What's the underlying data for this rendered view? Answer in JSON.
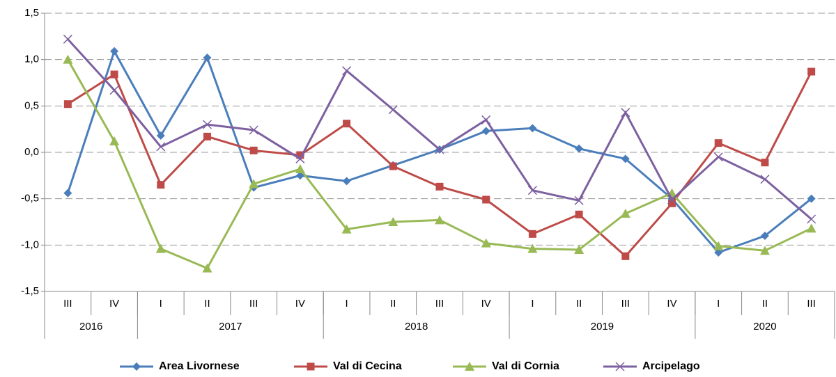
{
  "chart_data": {
    "type": "line",
    "categories": [
      "III",
      "IV",
      "I",
      "II",
      "III",
      "IV",
      "I",
      "II",
      "III",
      "IV",
      "I",
      "II",
      "III",
      "IV",
      "I",
      "II",
      "III"
    ],
    "years": [
      {
        "label": "2016",
        "n": 2
      },
      {
        "label": "2017",
        "n": 4
      },
      {
        "label": "2018",
        "n": 4
      },
      {
        "label": "2019",
        "n": 4
      },
      {
        "label": "2020",
        "n": 3
      }
    ],
    "series": [
      {
        "name": "Area Livornese",
        "color": "#4a7ebb",
        "marker": "diamond",
        "values": [
          -0.44,
          1.09,
          0.18,
          1.02,
          -0.38,
          -0.25,
          -0.31,
          -0.14,
          0.03,
          0.23,
          0.26,
          0.04,
          -0.07,
          -0.5,
          -1.08,
          -0.9,
          -0.5
        ]
      },
      {
        "name": "Val di Cecina",
        "color": "#be4b48",
        "marker": "square",
        "values": [
          0.52,
          0.84,
          -0.35,
          0.17,
          0.02,
          -0.03,
          0.31,
          -0.15,
          -0.37,
          -0.51,
          -0.88,
          -0.67,
          -1.12,
          -0.55,
          0.1,
          -0.11,
          0.87
        ]
      },
      {
        "name": "Val di Cornia",
        "color": "#98b954",
        "marker": "triangle",
        "values": [
          1.0,
          0.12,
          -1.04,
          -1.25,
          -0.34,
          -0.18,
          -0.83,
          -0.75,
          -0.73,
          -0.98,
          -1.04,
          -1.05,
          -0.66,
          -0.44,
          -1.01,
          -1.06,
          -0.82
        ]
      },
      {
        "name": "Arcipelago",
        "color": "#7d60a0",
        "marker": "x",
        "values": [
          1.22,
          0.67,
          0.06,
          0.3,
          0.24,
          -0.07,
          0.88,
          0.46,
          0.03,
          0.35,
          -0.41,
          -0.52,
          0.43,
          -0.51,
          -0.05,
          -0.29,
          -0.72
        ]
      }
    ],
    "ylim": [
      -1.5,
      1.5
    ],
    "yticks": [
      {
        "value": -1.5,
        "label": "-1,5"
      },
      {
        "value": -1,
        "label": "-1,0"
      },
      {
        "value": -0.5,
        "label": "-0,5"
      },
      {
        "value": 0,
        "label": "0,0"
      },
      {
        "value": 0.5,
        "label": "0,5"
      },
      {
        "value": 1,
        "label": "1,0"
      },
      {
        "value": 1.5,
        "label": "1,5"
      }
    ],
    "grid": true,
    "legend": "bottom"
  }
}
